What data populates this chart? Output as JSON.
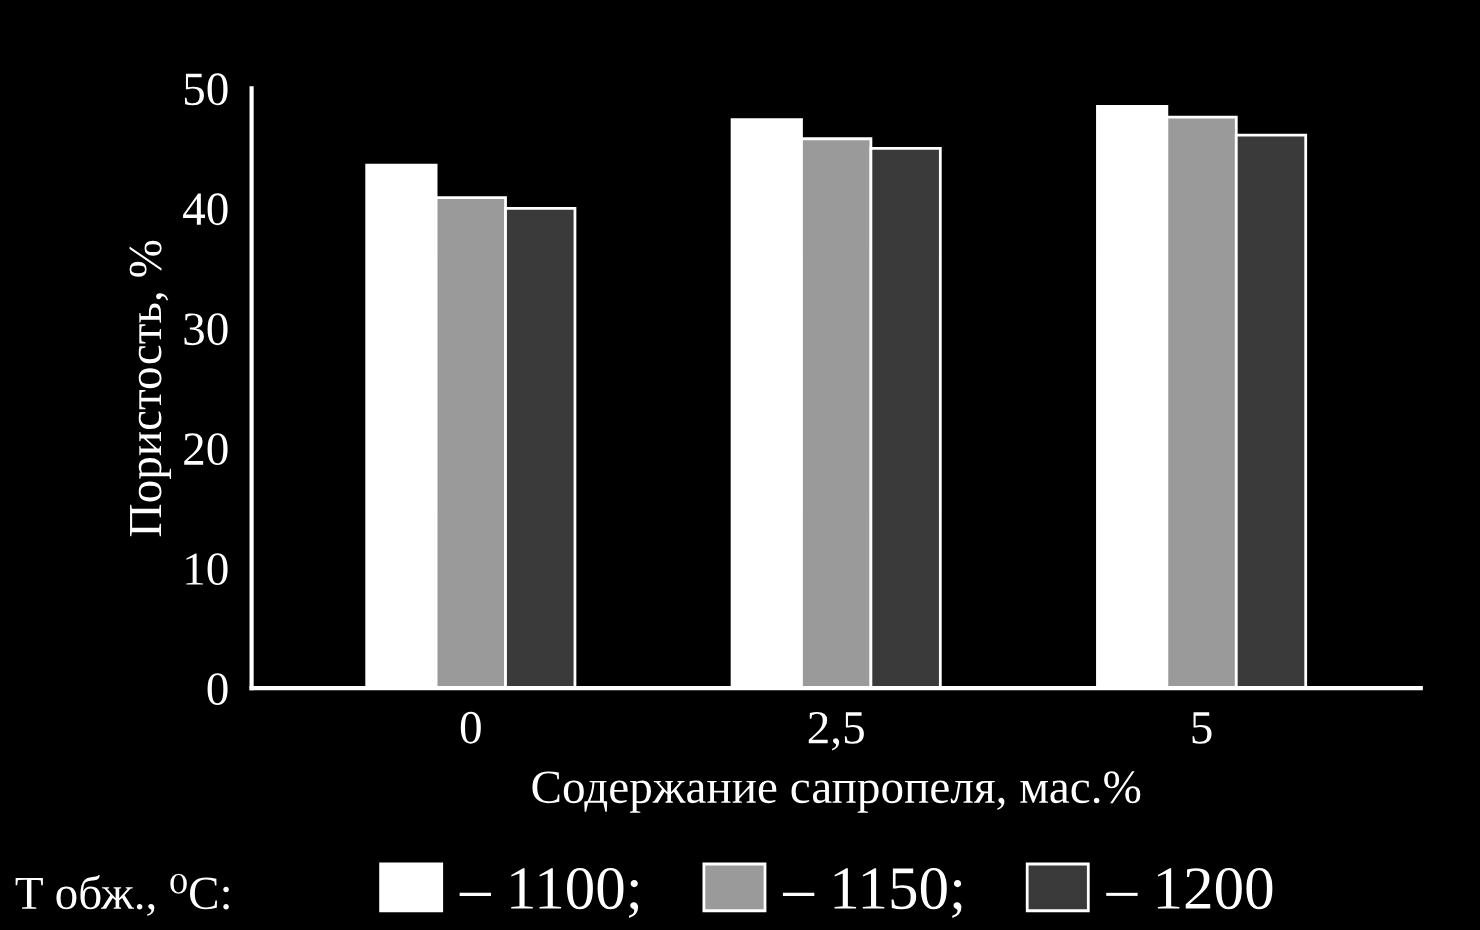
{
  "chart_data": {
    "type": "bar",
    "xlabel": "Содержание сапропеля, мас.%",
    "ylabel": "Пористость, %",
    "categories": [
      "0",
      "2,5",
      "5"
    ],
    "series": [
      {
        "name": "– 1100;",
        "color": "#ffffff",
        "values": [
          43.6,
          47.4,
          48.5
        ]
      },
      {
        "name": "– 1150;",
        "color": "#9a9a9a",
        "values": [
          40.9,
          45.8,
          47.6
        ]
      },
      {
        "name": "– 1200",
        "color": "#3a3a3a",
        "values": [
          40.0,
          45.0,
          46.1
        ]
      }
    ],
    "legend_title": "T обж., ⁰C:",
    "legend": "bottom",
    "ylim": [
      0,
      50
    ],
    "yticks": [
      0,
      10,
      20,
      30,
      40,
      50
    ],
    "grid": false
  }
}
